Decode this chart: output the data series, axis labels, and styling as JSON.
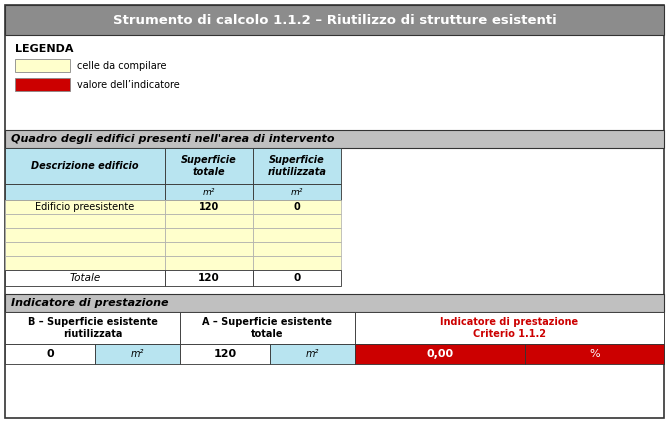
{
  "title": "Strumento di calcolo 1.1.2 – Riutilizzo di strutture esistenti",
  "title_bg": "#8c8c8c",
  "title_fg": "#ffffff",
  "legend_title": "LEGENDA",
  "legend_yellow_label": "celle da compilare",
  "legend_red_label": "valore dell’indicatore",
  "legend_yellow": "#ffffcc",
  "legend_red": "#cc0000",
  "section1_title": "Quadro degli edifici presenti nell'area di intervento",
  "section1_bg": "#c0c0c0",
  "table_header_bg": "#b8e4f0",
  "table_header_cols": [
    "Descrizione edificio",
    "Superficie\ntotale",
    "Superficie\nriutilizzata"
  ],
  "table_unit_row": [
    "",
    "m²",
    "m²"
  ],
  "table_rows": [
    [
      "Edificio preesistente",
      "120",
      "0"
    ],
    [
      "",
      "",
      ""
    ],
    [
      "",
      "",
      ""
    ],
    [
      "",
      "",
      ""
    ],
    [
      "",
      "",
      ""
    ]
  ],
  "table_row_bg_first": "#ffffcc",
  "table_row_bg_rest": "#ffffcc",
  "table_total_row": [
    "Totale",
    "120",
    "0"
  ],
  "table_total_bg": "#ffffff",
  "section2_title": "Indicatore di prestazione",
  "section2_bg": "#c0c0c0",
  "ind_col1_label": "B – Superficie esistente\nriutilizzata",
  "ind_col2_label": "A – Superficie esistente\ntotale",
  "ind_col3_label": "Indicatore di prestazione\nCriterio 1.1.2",
  "ind_col1_val": "0",
  "ind_col1_unit": "m²",
  "ind_col2_val": "120",
  "ind_col2_unit": "m²",
  "ind_col3_val": "0,00",
  "ind_col3_unit": "%",
  "ind_col3_label_color": "#cc0000",
  "ind_col3_val_bg": "#cc0000",
  "ind_col3_val_fg": "#ffffff",
  "ind_unit_bg": "#b8e4f0",
  "outer_bg": "#ffffff",
  "border_color": "#555555",
  "text_color": "#000000",
  "fig_w": 6.69,
  "fig_h": 4.23,
  "dpi": 100
}
